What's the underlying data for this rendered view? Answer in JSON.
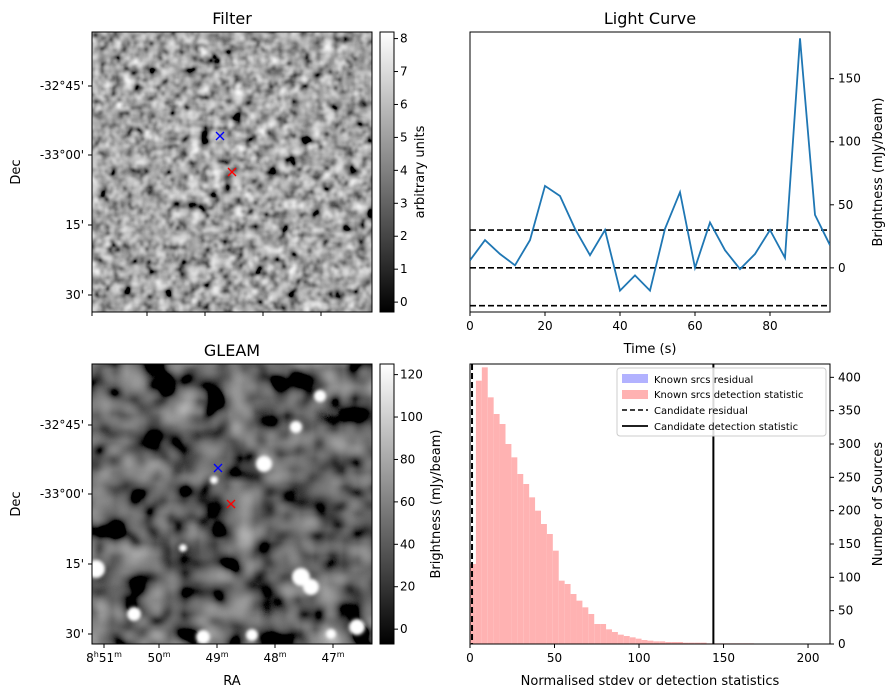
{
  "chart_data": [
    {
      "type": "heatmap",
      "title": "Filter",
      "xlabel": "",
      "ylabel": "Dec",
      "y_ticks": [
        "-32°45'",
        "-33°00'",
        "15'",
        "30'"
      ],
      "colorbar": {
        "label": "arbitrary units",
        "ticks": [
          0,
          1,
          2,
          3,
          4,
          5,
          6,
          7,
          8
        ],
        "range": [
          -0.3,
          8.2
        ],
        "colormap": "gray"
      },
      "markers": [
        {
          "name": "candidate-blue",
          "symbol": "x",
          "color": "#0000ff"
        },
        {
          "name": "candidate-red",
          "symbol": "x",
          "color": "#ff0000"
        }
      ]
    },
    {
      "type": "line",
      "title": "Light Curve",
      "xlabel": "Time (s)",
      "ylabel": "Brightness (mJy/beam)",
      "xlim": [
        0,
        96
      ],
      "ylim": [
        -35,
        187
      ],
      "x_ticks": [
        0,
        20,
        40,
        60,
        80
      ],
      "y_ticks": [
        0,
        50,
        100,
        150
      ],
      "series": [
        {
          "name": "light-curve",
          "color": "#1f77b4",
          "x": [
            0,
            4,
            8,
            12,
            16,
            20,
            24,
            28,
            32,
            36,
            40,
            44,
            48,
            52,
            56,
            60,
            64,
            68,
            72,
            76,
            80,
            84,
            88,
            92,
            96
          ],
          "values": [
            6,
            22,
            11,
            2,
            22,
            65,
            57,
            31,
            10,
            30,
            -18,
            -6,
            -18,
            31,
            60,
            0,
            36,
            14,
            -1,
            11,
            30,
            8,
            182,
            42,
            18
          ]
        }
      ],
      "hlines": [
        {
          "name": "upper-threshold",
          "value": 30,
          "style": "dashed"
        },
        {
          "name": "zero-line",
          "value": 0,
          "style": "dashed"
        },
        {
          "name": "lower-threshold",
          "value": -30,
          "style": "dashed"
        }
      ]
    },
    {
      "type": "heatmap",
      "title": "GLEAM",
      "xlabel": "RA",
      "ylabel": "Dec",
      "y_ticks": [
        "-32°45'",
        "-33°00'",
        "15'",
        "30'"
      ],
      "x_ticks": [
        {
          "main": "8",
          "sup1": "h",
          "mid": "51",
          "sup2": "m"
        },
        {
          "main": "50",
          "sup2": "m"
        },
        {
          "main": "49",
          "sup2": "m"
        },
        {
          "main": "48",
          "sup2": "m"
        },
        {
          "main": "47",
          "sup2": "m"
        }
      ],
      "colorbar": {
        "label": "Brightness (mJy/beam)",
        "ticks": [
          0,
          20,
          40,
          60,
          80,
          100,
          120
        ],
        "range": [
          -7,
          125
        ],
        "colormap": "gray"
      },
      "markers": [
        {
          "name": "candidate-blue",
          "symbol": "x",
          "color": "#0000ff"
        },
        {
          "name": "candidate-red",
          "symbol": "x",
          "color": "#ff0000"
        }
      ]
    },
    {
      "type": "bar",
      "title": "",
      "xlabel": "Normalised stdev or detection statistics",
      "ylabel": "Number of Sources",
      "xlim": [
        0,
        213
      ],
      "ylim": [
        0,
        420
      ],
      "x_ticks": [
        0,
        50,
        100,
        150,
        200
      ],
      "y_ticks": [
        0,
        50,
        100,
        150,
        200,
        250,
        300,
        350,
        400
      ],
      "bin_width": 3.5,
      "bins_start": 0,
      "series": [
        {
          "name": "Known srcs residual",
          "color": "#b2b2ff",
          "values": []
        },
        {
          "name": "Known srcs detection statistic",
          "color": "#ffb2b2",
          "values": [
            120,
            395,
            415,
            370,
            345,
            330,
            300,
            280,
            255,
            240,
            220,
            200,
            180,
            165,
            140,
            95,
            90,
            75,
            65,
            55,
            45,
            30,
            30,
            22,
            18,
            14,
            12,
            10,
            8,
            6,
            5,
            4,
            4,
            3,
            3,
            3,
            2,
            2,
            2,
            2,
            1,
            1,
            1,
            1,
            1,
            1,
            1,
            1,
            0,
            0,
            0,
            0,
            0,
            0,
            0,
            0,
            0,
            0,
            0,
            0,
            0,
            0,
            0,
            0,
            0,
            0,
            0,
            0,
            0,
            0,
            0,
            0,
            0,
            0,
            0,
            0,
            0,
            0,
            0,
            0,
            0,
            0,
            0,
            0,
            0,
            0,
            0,
            0,
            0,
            0,
            0,
            0,
            0,
            0,
            0,
            0,
            0,
            0,
            0,
            0
          ]
        }
      ],
      "vlines": [
        {
          "name": "Candidate residual",
          "value": 1.2,
          "style": "dashed"
        },
        {
          "name": "Candidate detection statistic",
          "value": 144,
          "style": "solid"
        }
      ],
      "legend": {
        "position": "top-right",
        "entries": [
          {
            "label": "Known srcs residual",
            "kind": "patch",
            "color": "#b2b2ff"
          },
          {
            "label": "Known srcs detection statistic",
            "kind": "patch",
            "color": "#ffb2b2"
          },
          {
            "label": "Candidate residual",
            "kind": "line-dashed",
            "color": "#000000"
          },
          {
            "label": "Candidate detection statistic",
            "kind": "line-solid",
            "color": "#000000"
          }
        ]
      }
    }
  ]
}
